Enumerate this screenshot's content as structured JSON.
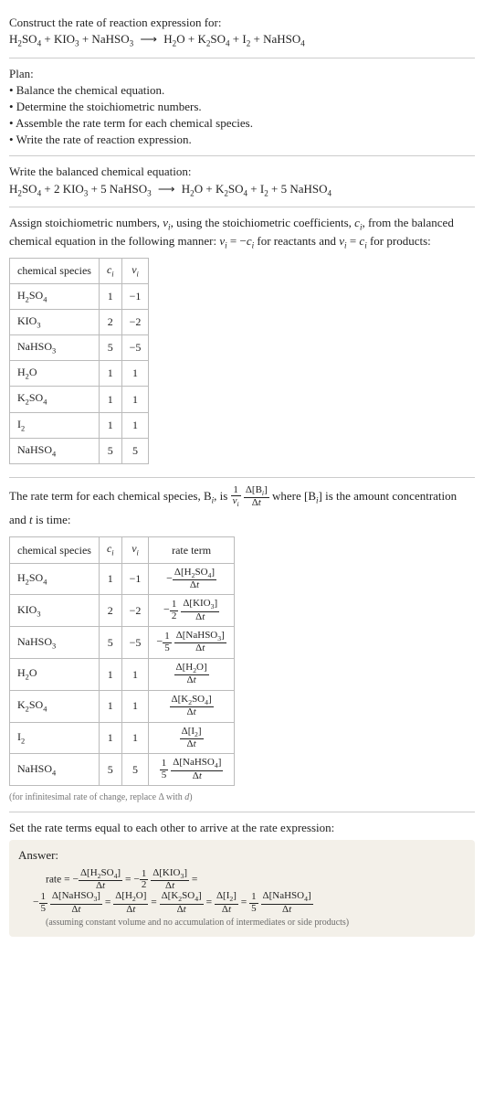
{
  "colors": {
    "text": "#222222",
    "bg": "#ffffff",
    "divider": "#cccccc",
    "tableBorder": "#bbbbbb",
    "footnote": "#777777",
    "answerBg": "#f3f0e9",
    "answerFoot": "#6b6b6b"
  },
  "typography": {
    "bodyFont": "Georgia, 'Times New Roman', serif",
    "bodySize": 13,
    "tableSize": 12,
    "footnoteSize": 10,
    "answerLineSize": 11.5
  },
  "prompt": {
    "title": "Construct the rate of reaction expression for:",
    "equation_html": "H<sub>2</sub>SO<sub>4</sub> + KIO<sub>3</sub> + NaHSO<sub>3</sub> <span class='arrow'>⟶</span> H<sub>2</sub>O + K<sub>2</sub>SO<sub>4</sub> + I<sub>2</sub> + NaHSO<sub>4</sub>"
  },
  "plan": {
    "heading": "Plan:",
    "bullets": [
      "• Balance the chemical equation.",
      "• Determine the stoichiometric numbers.",
      "• Assemble the rate term for each chemical species.",
      "• Write the rate of reaction expression."
    ]
  },
  "balanced": {
    "heading": "Write the balanced chemical equation:",
    "equation_html": "H<sub>2</sub>SO<sub>4</sub> + 2 KIO<sub>3</sub> + 5 NaHSO<sub>3</sub> <span class='arrow'>⟶</span> H<sub>2</sub>O + K<sub>2</sub>SO<sub>4</sub> + I<sub>2</sub> + 5 NaHSO<sub>4</sub>"
  },
  "stoich": {
    "intro_html": "Assign stoichiometric numbers, <span class='ital'>ν<sub>i</sub></span>, using the stoichiometric coefficients, <span class='ital'>c<sub>i</sub></span>, from the balanced chemical equation in the following manner: <span class='ital'>ν<sub>i</sub></span> = −<span class='ital'>c<sub>i</sub></span> for reactants and <span class='ital'>ν<sub>i</sub></span> = <span class='ital'>c<sub>i</sub></span> for products:",
    "columns": [
      "chemical species",
      "c_i",
      "ν_i"
    ],
    "col_html": [
      "chemical species",
      "<span class='ital'>c<sub>i</sub></span>",
      "<span class='ital'>ν<sub>i</sub></span>"
    ],
    "rows": [
      {
        "species_html": "H<sub>2</sub>SO<sub>4</sub>",
        "c": 1,
        "nu": -1
      },
      {
        "species_html": "KIO<sub>3</sub>",
        "c": 2,
        "nu": -2
      },
      {
        "species_html": "NaHSO<sub>3</sub>",
        "c": 5,
        "nu": -5
      },
      {
        "species_html": "H<sub>2</sub>O",
        "c": 1,
        "nu": 1
      },
      {
        "species_html": "K<sub>2</sub>SO<sub>4</sub>",
        "c": 1,
        "nu": 1
      },
      {
        "species_html": "I<sub>2</sub>",
        "c": 1,
        "nu": 1
      },
      {
        "species_html": "NaHSO<sub>4</sub>",
        "c": 5,
        "nu": 5
      }
    ]
  },
  "rateterm_intro_html": "The rate term for each chemical species, B<sub><span class='ital'>i</span></sub>, is <span class='frac'><span class='num'>1</span><span class='den'><span class='ital'>ν<sub>i</sub></span></span></span> <span class='frac'><span class='num'>Δ[B<sub><span class='ital'>i</span></sub>]</span><span class='den'>Δ<span class='ital'>t</span></span></span> where [B<sub><span class='ital'>i</span></sub>] is the amount concentration and <span class='ital'>t</span> is time:",
  "ratetable": {
    "columns": [
      "chemical species",
      "c_i",
      "ν_i",
      "rate term"
    ],
    "col_html": [
      "chemical species",
      "<span class='ital'>c<sub>i</sub></span>",
      "<span class='ital'>ν<sub>i</sub></span>",
      "rate term"
    ],
    "rows": [
      {
        "species_html": "H<sub>2</sub>SO<sub>4</sub>",
        "c": 1,
        "nu": -1,
        "rate_html": "−<span class='frac'><span class='num'>Δ[H<sub>2</sub>SO<sub>4</sub>]</span><span class='den'>Δ<span class='ital'>t</span></span></span>"
      },
      {
        "species_html": "KIO<sub>3</sub>",
        "c": 2,
        "nu": -2,
        "rate_html": "−<span class='frac'><span class='num'>1</span><span class='den'>2</span></span> <span class='frac'><span class='num'>Δ[KIO<sub>3</sub>]</span><span class='den'>Δ<span class='ital'>t</span></span></span>"
      },
      {
        "species_html": "NaHSO<sub>3</sub>",
        "c": 5,
        "nu": -5,
        "rate_html": "−<span class='frac'><span class='num'>1</span><span class='den'>5</span></span> <span class='frac'><span class='num'>Δ[NaHSO<sub>3</sub>]</span><span class='den'>Δ<span class='ital'>t</span></span></span>"
      },
      {
        "species_html": "H<sub>2</sub>O",
        "c": 1,
        "nu": 1,
        "rate_html": "<span class='frac'><span class='num'>Δ[H<sub>2</sub>O]</span><span class='den'>Δ<span class='ital'>t</span></span></span>"
      },
      {
        "species_html": "K<sub>2</sub>SO<sub>4</sub>",
        "c": 1,
        "nu": 1,
        "rate_html": "<span class='frac'><span class='num'>Δ[K<sub>2</sub>SO<sub>4</sub>]</span><span class='den'>Δ<span class='ital'>t</span></span></span>"
      },
      {
        "species_html": "I<sub>2</sub>",
        "c": 1,
        "nu": 1,
        "rate_html": "<span class='frac'><span class='num'>Δ[I<sub>2</sub>]</span><span class='den'>Δ<span class='ital'>t</span></span></span>"
      },
      {
        "species_html": "NaHSO<sub>4</sub>",
        "c": 5,
        "nu": 5,
        "rate_html": "<span class='frac'><span class='num'>1</span><span class='den'>5</span></span> <span class='frac'><span class='num'>Δ[NaHSO<sub>4</sub>]</span><span class='den'>Δ<span class='ital'>t</span></span></span>"
      }
    ],
    "footnote_html": "(for infinitesimal rate of change, replace Δ with <span class='ital'>d</span>)"
  },
  "final_heading": "Set the rate terms equal to each other to arrive at the rate expression:",
  "answer": {
    "label": "Answer:",
    "line1_html": "rate = −<span class='frac'><span class='num'>Δ[H<sub>2</sub>SO<sub>4</sub>]</span><span class='den'>Δ<span class='ital'>t</span></span></span> = −<span class='frac'><span class='num'>1</span><span class='den'>2</span></span> <span class='frac'><span class='num'>Δ[KIO<sub>3</sub>]</span><span class='den'>Δ<span class='ital'>t</span></span></span> =",
    "line2_html": "−<span class='frac'><span class='num'>1</span><span class='den'>5</span></span> <span class='frac'><span class='num'>Δ[NaHSO<sub>3</sub>]</span><span class='den'>Δ<span class='ital'>t</span></span></span> = <span class='frac'><span class='num'>Δ[H<sub>2</sub>O]</span><span class='den'>Δ<span class='ital'>t</span></span></span> = <span class='frac'><span class='num'>Δ[K<sub>2</sub>SO<sub>4</sub>]</span><span class='den'>Δ<span class='ital'>t</span></span></span> = <span class='frac'><span class='num'>Δ[I<sub>2</sub>]</span><span class='den'>Δ<span class='ital'>t</span></span></span> = <span class='frac'><span class='num'>1</span><span class='den'>5</span></span> <span class='frac'><span class='num'>Δ[NaHSO<sub>4</sub>]</span><span class='den'>Δ<span class='ital'>t</span></span></span>",
    "foot": "(assuming constant volume and no accumulation of intermediates or side products)"
  }
}
